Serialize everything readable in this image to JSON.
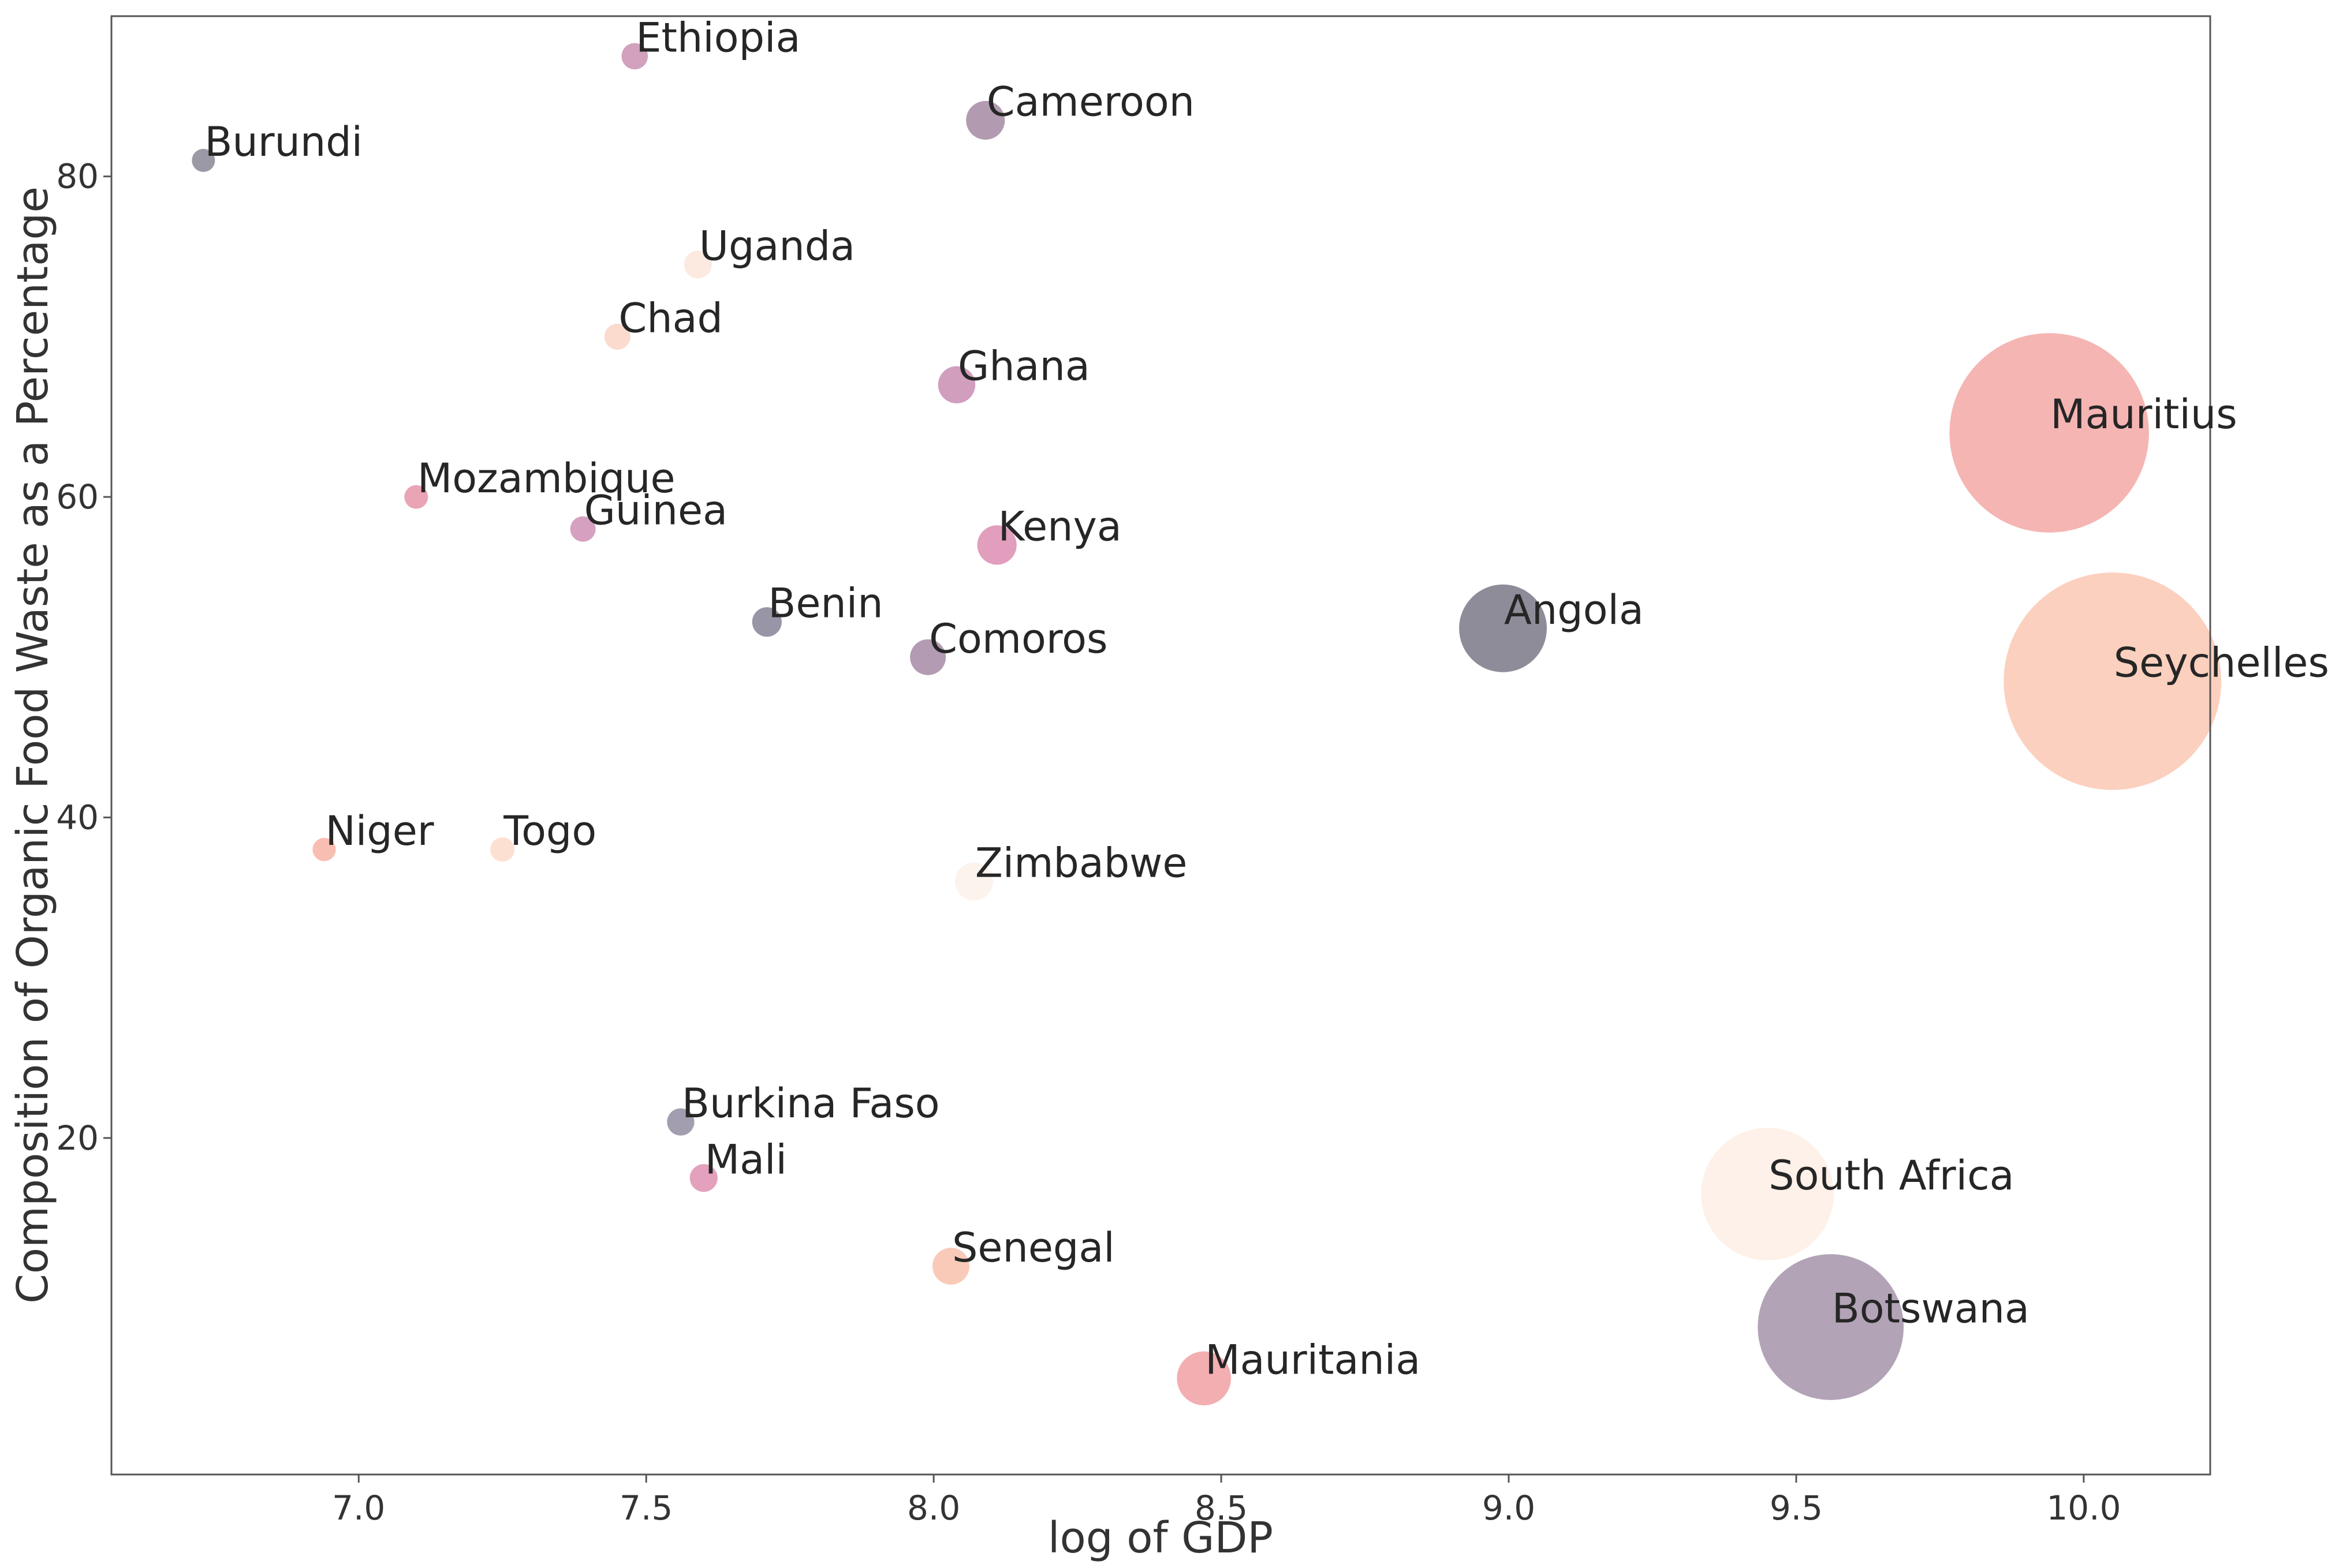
{
  "chart_data": {
    "type": "scatter",
    "title": "",
    "xlabel": "log of GDP",
    "ylabel": "Composition of Organic Food Waste as a Percentage",
    "xlim": [
      6.57,
      10.22
    ],
    "ylim": [
      -1,
      90
    ],
    "xticks": [
      "7.0",
      "7.5",
      "8.0",
      "8.5",
      "9.0",
      "9.5",
      "10.0"
    ],
    "yticks": [
      "20",
      "40",
      "60",
      "80"
    ],
    "xtick_values": [
      7.0,
      7.5,
      8.0,
      8.5,
      9.0,
      9.5,
      10.0
    ],
    "ytick_values": [
      20,
      40,
      60,
      80
    ],
    "grid": false,
    "size_encodes": "log of GDP",
    "points": [
      {
        "label": "Ethiopia",
        "x": 7.48,
        "y": 87.5,
        "color": "#c990b2"
      },
      {
        "label": "Cameroon",
        "x": 8.09,
        "y": 83.5,
        "color": "#a58aa3"
      },
      {
        "label": "Burundi",
        "x": 6.73,
        "y": 81.0,
        "color": "#8a8796"
      },
      {
        "label": "Uganda",
        "x": 7.59,
        "y": 74.5,
        "color": "#fbe5da"
      },
      {
        "label": "Chad",
        "x": 7.45,
        "y": 70.0,
        "color": "#f9d5c5"
      },
      {
        "label": "Ghana",
        "x": 8.04,
        "y": 67.0,
        "color": "#c98db3"
      },
      {
        "label": "Mauritius",
        "x": 9.94,
        "y": 64.0,
        "color": "#f3a8a6"
      },
      {
        "label": "Mozambique",
        "x": 7.1,
        "y": 60.0,
        "color": "#e594a8"
      },
      {
        "label": "Guinea",
        "x": 7.39,
        "y": 58.0,
        "color": "#cf90b5"
      },
      {
        "label": "Kenya",
        "x": 8.11,
        "y": 57.0,
        "color": "#dc8db2"
      },
      {
        "label": "Benin",
        "x": 7.71,
        "y": 52.2,
        "color": "#858396"
      },
      {
        "label": "Angola",
        "x": 8.99,
        "y": 51.8,
        "color": "#7a7887"
      },
      {
        "label": "Comoros",
        "x": 7.99,
        "y": 50.0,
        "color": "#a689a7"
      },
      {
        "label": "Seychelles",
        "x": 10.05,
        "y": 48.5,
        "color": "#fcc8b3"
      },
      {
        "label": "Niger",
        "x": 6.94,
        "y": 38.0,
        "color": "#f7b3a3"
      },
      {
        "label": "Togo",
        "x": 7.25,
        "y": 38.0,
        "color": "#fbdccb"
      },
      {
        "label": "Zimbabwe",
        "x": 8.07,
        "y": 36.0,
        "color": "#fdf1ea"
      },
      {
        "label": "Burkina Faso",
        "x": 7.56,
        "y": 21.0,
        "color": "#938ca2"
      },
      {
        "label": "Mali",
        "x": 7.6,
        "y": 17.5,
        "color": "#df90b2"
      },
      {
        "label": "South Africa",
        "x": 9.45,
        "y": 16.5,
        "color": "#fdeee5"
      },
      {
        "label": "Senegal",
        "x": 8.03,
        "y": 12.0,
        "color": "#f9c1ad"
      },
      {
        "label": "Botswana",
        "x": 9.56,
        "y": 8.2,
        "color": "#a593a9"
      },
      {
        "label": "Mauritania",
        "x": 8.47,
        "y": 5.0,
        "color": "#f1a0a3"
      }
    ]
  }
}
